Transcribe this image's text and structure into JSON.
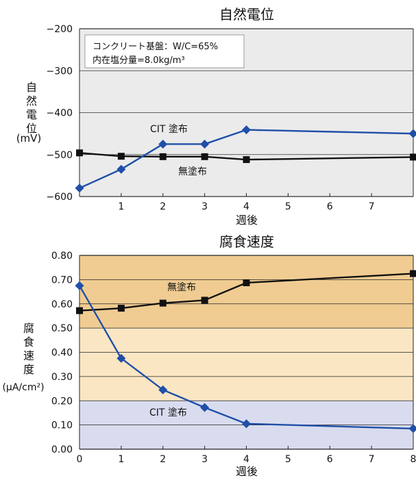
{
  "chart_data": [
    {
      "type": "line",
      "title": "自然電位",
      "ylabel_chars": [
        "自",
        "然",
        "電",
        "位"
      ],
      "yunit": "(mV)",
      "xlabel": "週後",
      "ylim": [
        -600,
        -200
      ],
      "yticks": [
        -200,
        -300,
        -400,
        -500,
        -600
      ],
      "xlim": [
        0,
        8
      ],
      "xticks": [
        1,
        2,
        3,
        4,
        5,
        6,
        7
      ],
      "grid": "horizontal",
      "annotation_lines": [
        "コンクリート基盤：W/C=65%",
        "内在塩分量=8.0kg/m³"
      ],
      "series": [
        {
          "name": "CIT 塗布",
          "color": "#1f4fa8",
          "marker": "diamond",
          "x": [
            0,
            1,
            2,
            3,
            4,
            8
          ],
          "y": [
            -580,
            -535,
            -475,
            -475,
            -441,
            -450
          ]
        },
        {
          "name": "無塗布",
          "color": "#111111",
          "marker": "square",
          "x": [
            0,
            1,
            2,
            3,
            4,
            8
          ],
          "y": [
            -496,
            -504,
            -505,
            -505,
            -512,
            -506
          ]
        }
      ]
    },
    {
      "type": "line",
      "title": "腐食速度",
      "ylabel_chars": [
        "腐",
        "食",
        "速",
        "度"
      ],
      "yunit": "(μA/cm²)",
      "xlabel": "週後",
      "ylim": [
        0,
        0.8
      ],
      "yticks": [
        "0.80",
        "0.70",
        "0.60",
        "0.50",
        "0.40",
        "0.30",
        "0.20",
        "0.10",
        "0.00"
      ],
      "xlim": [
        0,
        8
      ],
      "xticks": [
        0,
        1,
        2,
        3,
        4,
        5,
        6,
        7,
        8
      ],
      "grid": "horizontal",
      "bands": [
        {
          "from": 0.5,
          "to": 0.8,
          "color": "#f0cc92"
        },
        {
          "from": 0.2,
          "to": 0.5,
          "color": "#fbe6c4"
        },
        {
          "from": 0.0,
          "to": 0.2,
          "color": "#d9dcee"
        }
      ],
      "series": [
        {
          "name": "CIT 塗布",
          "color": "#1f4fa8",
          "marker": "diamond",
          "x": [
            0,
            1,
            2,
            3,
            4,
            8
          ],
          "y": [
            0.675,
            0.375,
            0.245,
            0.172,
            0.105,
            0.085
          ]
        },
        {
          "name": "無塗布",
          "color": "#111111",
          "marker": "square",
          "x": [
            0,
            1,
            2,
            3,
            4,
            8
          ],
          "y": [
            0.572,
            0.582,
            0.603,
            0.615,
            0.687,
            0.725
          ]
        }
      ]
    }
  ]
}
